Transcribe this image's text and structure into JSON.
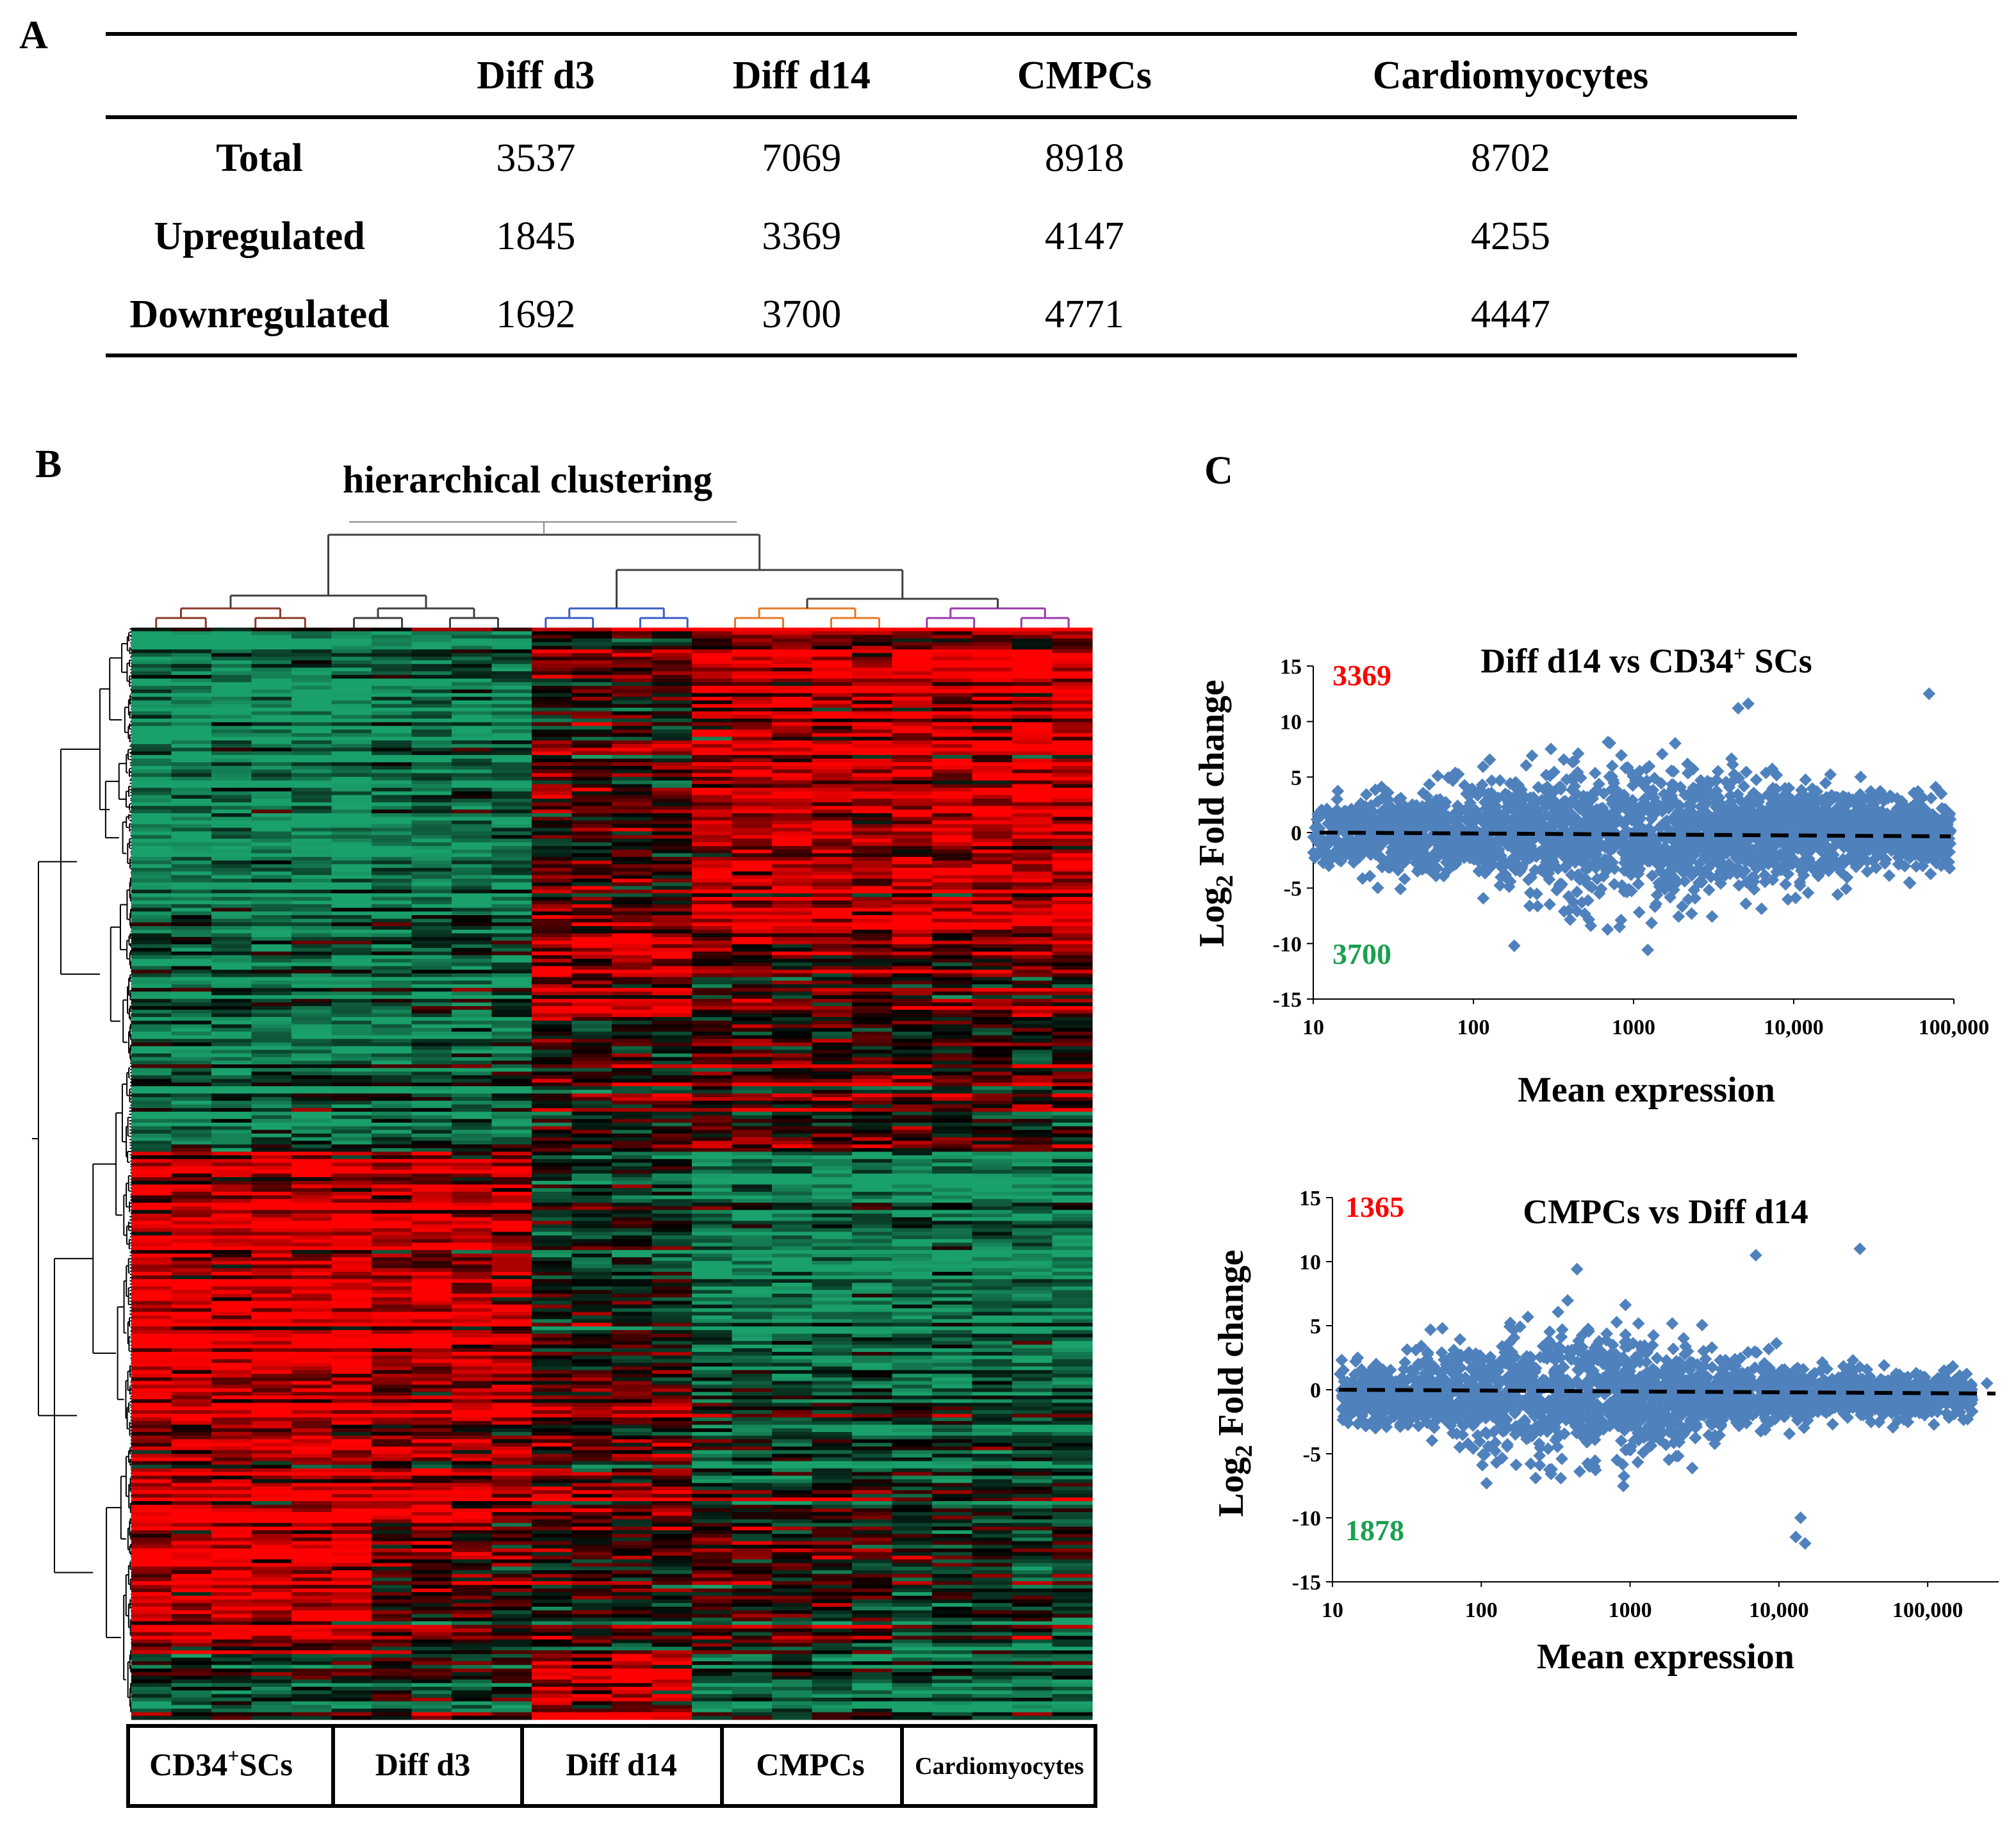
{
  "panel_labels": {
    "a": "A",
    "b": "B",
    "c": "C"
  },
  "table": {
    "headers": [
      "",
      "Diff d3",
      "Diff d14",
      "CMPCs",
      "Cardiomyocytes"
    ],
    "rows": [
      {
        "label": "Total",
        "values": [
          "3537",
          "7069",
          "8918",
          "8702"
        ]
      },
      {
        "label": "Upregulated",
        "values": [
          "1845",
          "3369",
          "4147",
          "4255"
        ]
      },
      {
        "label": "Downregulated",
        "values": [
          "1692",
          "3700",
          "4771",
          "4447"
        ]
      }
    ]
  },
  "heatmap": {
    "title": "hierarchical clustering",
    "groups": [
      {
        "label": "CD34",
        "sup": "+",
        "suffix": "SCs"
      },
      {
        "label": "Diff d3",
        "sup": "",
        "suffix": ""
      },
      {
        "label": "Diff d14",
        "sup": "",
        "suffix": ""
      },
      {
        "label": "CMPCs",
        "sup": "",
        "suffix": ""
      },
      {
        "label": "Cardiomyocytes",
        "sup": "",
        "suffix": ""
      }
    ],
    "colors": {
      "up": "#ff0000",
      "down": "#1aa06a",
      "neutral": "#000000"
    },
    "dendrogram_colors": [
      "#8a3a2a",
      "#404040",
      "#3a5cc4",
      "#e07a2a",
      "#9a3aaa"
    ]
  },
  "chart_data": [
    {
      "type": "scatter",
      "title": "Diff d14 vs CD34",
      "title_sup": "+",
      "title_suffix": " SCs",
      "xlabel": "Mean expression",
      "ylabel_main": "Log",
      "ylabel_sub": "2",
      "ylabel_rest": " Fold change",
      "xscale": "log",
      "xlim": [
        10,
        100000
      ],
      "ylim": [
        -15,
        15
      ],
      "yticks": [
        15,
        10,
        5,
        0,
        -5,
        -10,
        -15
      ],
      "xticks": [
        10,
        100,
        1000,
        10000,
        100000
      ],
      "xtick_labels": [
        "10",
        "100",
        "1000",
        "10,000",
        "100,000"
      ],
      "up_count": "3369",
      "down_count": "3700",
      "up_color": "#ff0000",
      "down_color": "#1aa050",
      "point_color": "#4f81bd",
      "reference_line": 0,
      "outlier_points": [
        [
          70000,
          12.5
        ],
        [
          4500,
          11.2
        ],
        [
          5200,
          11.6
        ],
        [
          180,
          -10.2
        ],
        [
          95000,
          1.2
        ],
        [
          95000,
          -1.0
        ]
      ]
    },
    {
      "type": "scatter",
      "title": "CMPCs vs Diff d14",
      "xlabel": "Mean expression",
      "ylabel_main": "Log",
      "ylabel_sub": "2",
      "ylabel_rest": " Fold change",
      "xscale": "log",
      "xlim": [
        10,
        300000
      ],
      "ylim": [
        -15,
        15
      ],
      "yticks": [
        15,
        10,
        5,
        0,
        -5,
        -10,
        -15
      ],
      "xticks": [
        10,
        100,
        1000,
        10000,
        100000
      ],
      "xtick_labels": [
        "10",
        "100",
        "1000",
        "10,000",
        "100,000"
      ],
      "up_count": "1365",
      "down_count": "1878",
      "up_color": "#ff0000",
      "down_color": "#1aa050",
      "point_color": "#4f81bd",
      "reference_line": 0,
      "outlier_points": [
        [
          35000,
          11
        ],
        [
          7000,
          10.5
        ],
        [
          15000,
          -12
        ],
        [
          13000,
          -11.5
        ],
        [
          250000,
          0.5
        ],
        [
          14000,
          -10
        ]
      ]
    }
  ]
}
